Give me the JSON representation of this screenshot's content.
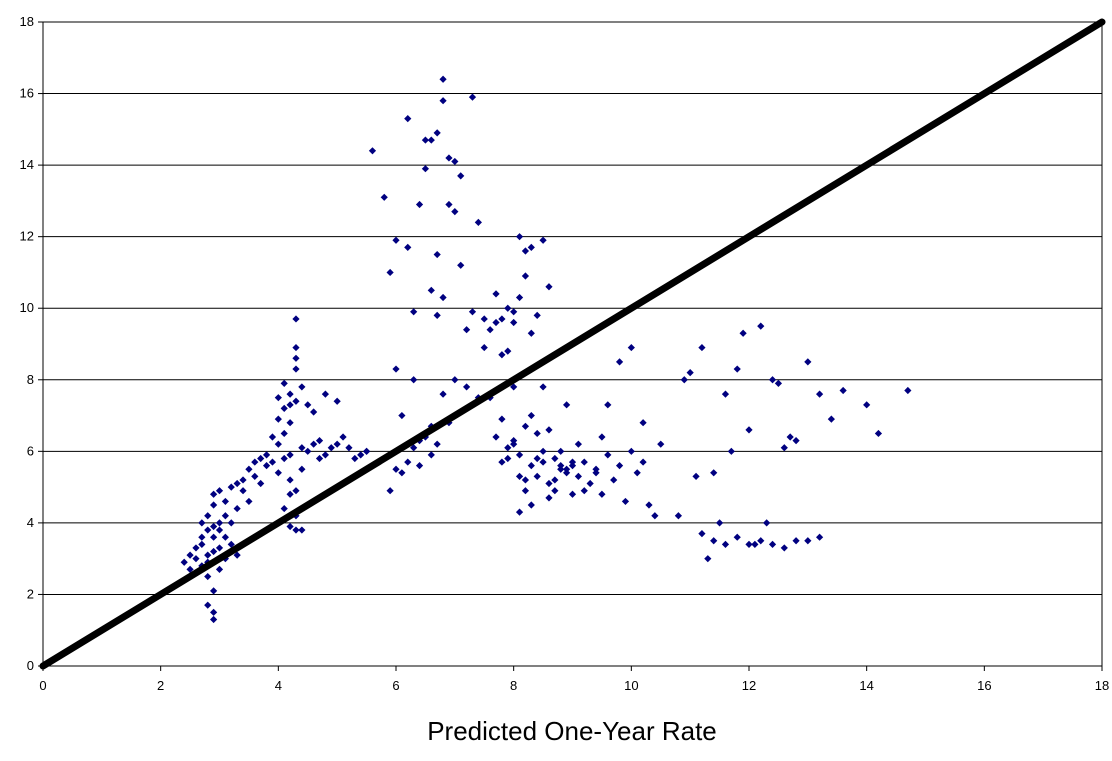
{
  "chart_data": {
    "type": "scatter",
    "title": "",
    "xlabel": "Predicted One-Year Rate",
    "ylabel": "",
    "xlim": [
      0,
      18
    ],
    "ylim": [
      0,
      18
    ],
    "xticks": [
      "0",
      "2",
      "4",
      "6",
      "8",
      "10",
      "12",
      "14",
      "16",
      "18"
    ],
    "yticks": [
      "0",
      "2",
      "4",
      "6",
      "8",
      "10",
      "12",
      "14",
      "16",
      "18"
    ],
    "grid": "horizontal",
    "legend": "none",
    "point_color": "#000080",
    "line_color": "#000000",
    "reference_line": {
      "x": [
        0,
        18
      ],
      "y": [
        0,
        18
      ]
    },
    "series": [
      {
        "x": [
          2.4,
          2.5,
          2.5,
          2.6,
          2.6,
          2.7,
          2.7,
          2.7,
          2.8,
          2.8,
          2.8,
          2.8,
          2.9,
          2.9,
          2.9,
          2.9,
          2.9,
          3.0,
          3.0,
          3.0,
          3.0,
          3.0,
          3.1,
          3.1,
          3.1,
          3.1,
          3.2,
          3.2,
          3.2,
          3.3,
          3.3,
          3.3,
          3.4,
          3.4,
          3.5,
          3.5,
          3.6,
          3.6,
          3.7,
          3.7,
          3.8,
          3.8,
          3.9,
          3.9,
          4.0,
          4.0,
          4.0,
          4.0,
          4.1,
          4.1,
          4.1,
          4.1,
          4.1,
          4.2,
          4.2,
          4.2,
          4.2,
          4.2,
          4.3,
          4.3,
          4.3,
          4.3,
          4.3,
          4.3,
          4.4,
          4.4,
          4.4,
          4.5,
          4.5,
          4.6,
          4.6,
          4.7,
          4.7,
          4.8,
          4.8,
          4.9,
          5.0,
          5.0,
          5.1,
          5.2,
          5.3,
          5.4,
          5.5,
          2.8,
          2.9,
          2.9,
          2.9,
          2.8,
          2.7,
          4.3,
          4.2,
          4.3,
          4.2,
          4.1,
          4.4
        ],
        "y": [
          2.9,
          3.1,
          2.7,
          3.3,
          3.0,
          3.6,
          4.0,
          3.4,
          3.8,
          4.2,
          3.1,
          2.9,
          4.5,
          3.9,
          3.2,
          4.8,
          3.6,
          4.0,
          3.3,
          4.9,
          2.7,
          3.8,
          4.2,
          3.0,
          3.6,
          4.6,
          4.0,
          5.0,
          3.4,
          4.4,
          3.1,
          5.1,
          4.9,
          5.2,
          5.5,
          4.6,
          5.7,
          5.3,
          5.8,
          5.1,
          5.6,
          5.9,
          6.4,
          5.7,
          6.9,
          7.5,
          6.2,
          5.4,
          7.9,
          7.2,
          6.5,
          4.4,
          5.8,
          7.6,
          6.8,
          5.9,
          4.8,
          5.2,
          8.9,
          8.6,
          8.3,
          7.4,
          4.9,
          4.2,
          7.8,
          6.1,
          5.5,
          7.3,
          6.0,
          7.1,
          6.2,
          6.3,
          5.8,
          7.6,
          5.9,
          6.1,
          6.2,
          7.4,
          6.4,
          6.1,
          5.8,
          5.9,
          6.0,
          1.7,
          1.5,
          1.3,
          2.1,
          2.5,
          2.8,
          9.7,
          7.3,
          3.8,
          3.9,
          4.1,
          3.8
        ]
      },
      {
        "x": [
          5.6,
          5.8,
          5.9,
          6.0,
          6.0,
          6.1,
          6.2,
          6.2,
          6.3,
          6.3,
          6.4,
          6.5,
          6.5,
          6.6,
          6.6,
          6.7,
          6.7,
          6.7,
          6.8,
          6.8,
          6.8,
          6.9,
          6.9,
          7.0,
          7.0,
          7.1,
          7.1,
          7.2,
          7.3,
          7.3,
          7.4,
          7.5,
          7.5,
          7.6,
          7.7,
          7.7,
          7.8,
          7.8,
          7.9,
          7.9,
          8.0,
          8.0,
          8.1,
          8.1,
          8.2,
          8.2,
          8.3,
          8.3,
          8.4,
          8.5,
          8.6,
          5.7,
          5.9,
          6.1,
          6.3,
          6.5,
          6.7,
          6.9,
          5.9,
          6.0,
          6.2,
          6.4,
          6.6,
          6.8,
          7.0,
          7.2,
          7.4,
          5.5,
          5.6,
          6.4,
          6.6
        ],
        "y": [
          14.4,
          13.1,
          11.0,
          11.9,
          8.3,
          7.0,
          15.3,
          11.7,
          9.9,
          8.0,
          12.9,
          13.9,
          14.7,
          10.5,
          14.7,
          14.9,
          11.5,
          9.8,
          16.4,
          15.8,
          10.3,
          14.2,
          12.9,
          12.7,
          14.1,
          13.7,
          11.2,
          9.4,
          15.9,
          9.9,
          12.4,
          9.7,
          8.9,
          9.4,
          10.4,
          9.6,
          8.7,
          9.7,
          8.8,
          10.0,
          9.6,
          9.9,
          12.0,
          10.3,
          11.6,
          10.9,
          11.7,
          9.3,
          9.8,
          11.9,
          10.6,
          5.7,
          5.9,
          5.4,
          6.1,
          6.4,
          6.2,
          6.8,
          4.9,
          5.5,
          5.7,
          6.3,
          6.7,
          7.6,
          8.0,
          7.8,
          7.5,
          6.0,
          5.6,
          5.6,
          5.9
        ]
      },
      {
        "x": [
          7.6,
          7.7,
          7.8,
          7.9,
          8.0,
          8.0,
          8.1,
          8.1,
          8.2,
          8.2,
          8.3,
          8.3,
          8.4,
          8.4,
          8.5,
          8.5,
          8.6,
          8.6,
          8.7,
          8.7,
          8.8,
          8.8,
          8.9,
          8.9,
          9.0,
          9.0,
          9.1,
          9.1,
          9.2,
          9.3,
          9.4,
          9.5,
          9.5,
          9.6,
          9.7,
          9.8,
          9.9,
          10.0,
          10.1,
          10.2,
          10.3,
          10.4,
          7.8,
          7.9,
          8.0,
          8.1,
          8.2,
          8.3,
          8.4,
          8.5,
          8.6,
          8.7,
          8.8,
          8.9,
          9.0,
          9.2,
          9.4,
          9.6,
          9.8,
          10.0,
          10.2,
          10.5,
          10.8,
          11.0,
          11.2,
          11.4,
          11.6,
          11.8,
          12.0,
          12.2,
          12.4,
          12.6,
          12.8,
          13.0,
          13.2,
          13.4,
          13.6,
          14.0,
          14.2,
          14.7,
          10.9,
          11.1,
          11.3,
          11.5,
          11.7,
          11.9,
          12.1,
          12.3,
          12.5,
          12.7,
          11.2,
          11.4,
          11.6,
          11.8,
          12.0,
          12.2,
          12.4,
          12.6,
          12.8,
          13.0,
          13.2
        ],
        "y": [
          7.5,
          6.4,
          6.9,
          5.8,
          7.8,
          6.2,
          5.3,
          5.9,
          4.9,
          6.7,
          5.6,
          7.0,
          5.3,
          6.5,
          5.7,
          7.8,
          5.1,
          6.6,
          5.8,
          4.9,
          5.5,
          6.0,
          5.4,
          7.3,
          4.8,
          5.6,
          5.3,
          6.2,
          5.7,
          5.1,
          5.5,
          4.8,
          6.4,
          5.9,
          5.2,
          5.6,
          4.6,
          6.0,
          5.4,
          5.7,
          4.5,
          4.2,
          5.7,
          6.1,
          6.3,
          4.3,
          5.2,
          4.5,
          5.8,
          6.0,
          4.7,
          5.2,
          5.6,
          5.5,
          5.7,
          4.9,
          5.4,
          7.3,
          8.5,
          8.9,
          6.8,
          6.2,
          4.2,
          8.2,
          8.9,
          5.4,
          7.6,
          8.3,
          6.6,
          9.5,
          8.0,
          6.1,
          6.3,
          8.5,
          7.6,
          6.9,
          7.7,
          7.3,
          6.5,
          7.7,
          8.0,
          5.3,
          3.0,
          4.0,
          6.0,
          9.3,
          3.4,
          4.0,
          7.9,
          6.4,
          3.7,
          3.5,
          3.4,
          3.6,
          3.4,
          3.5,
          3.4,
          3.3,
          3.5,
          3.5,
          3.6
        ]
      }
    ]
  }
}
